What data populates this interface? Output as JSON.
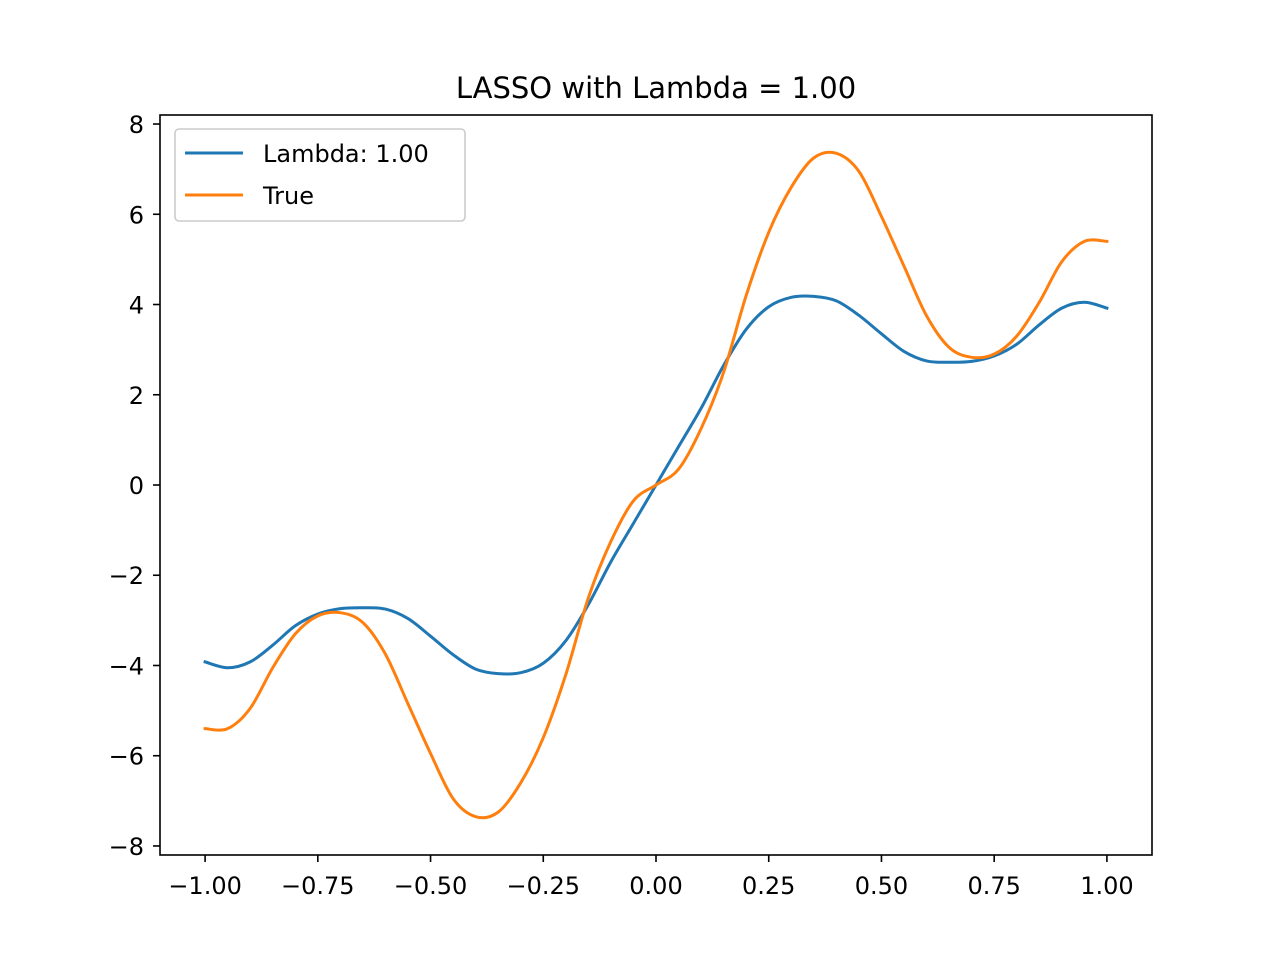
{
  "chart_data": {
    "type": "line",
    "title": "LASSO with Lambda = 1.00",
    "xlabel": "",
    "ylabel": "",
    "xlim": [
      -1.1,
      1.1
    ],
    "ylim": [
      -8.2,
      8.2
    ],
    "xticks": [
      -1.0,
      -0.75,
      -0.5,
      -0.25,
      0.0,
      0.25,
      0.5,
      0.75,
      1.0
    ],
    "xtick_labels": [
      "−1.00",
      "−0.75",
      "−0.50",
      "−0.25",
      "0.00",
      "0.25",
      "0.50",
      "0.75",
      "1.00"
    ],
    "yticks": [
      -8,
      -6,
      -4,
      -2,
      0,
      2,
      4,
      6,
      8
    ],
    "ytick_labels": [
      "−8",
      "−6",
      "−4",
      "−2",
      "0",
      "2",
      "4",
      "6",
      "8"
    ],
    "grid": false,
    "legend_position": "top-left",
    "x": [
      -1.0,
      -0.95,
      -0.9,
      -0.85,
      -0.8,
      -0.75,
      -0.7,
      -0.65,
      -0.6,
      -0.55,
      -0.5,
      -0.45,
      -0.4,
      -0.35,
      -0.3,
      -0.25,
      -0.2,
      -0.15,
      -0.1,
      -0.05,
      0.0,
      0.05,
      0.1,
      0.15,
      0.2,
      0.25,
      0.3,
      0.35,
      0.4,
      0.45,
      0.5,
      0.55,
      0.6,
      0.65,
      0.7,
      0.75,
      0.8,
      0.85,
      0.9,
      0.95,
      1.0
    ],
    "series": [
      {
        "name": "Lambda: 1.00",
        "color": "#1f77b4",
        "values": [
          -3.92,
          -4.05,
          -3.92,
          -3.55,
          -3.12,
          -2.86,
          -2.74,
          -2.72,
          -2.75,
          -2.96,
          -3.35,
          -3.76,
          -4.08,
          -4.18,
          -4.16,
          -3.95,
          -3.45,
          -2.65,
          -1.7,
          -0.85,
          0.0,
          0.85,
          1.7,
          2.65,
          3.45,
          3.95,
          4.16,
          4.18,
          4.08,
          3.76,
          3.35,
          2.96,
          2.75,
          2.72,
          2.74,
          2.86,
          3.12,
          3.55,
          3.92,
          4.05,
          3.92
        ]
      },
      {
        "name": "True",
        "color": "#ff7f0e",
        "values": [
          -5.4,
          -5.4,
          -4.95,
          -4.05,
          -3.3,
          -2.9,
          -2.83,
          -3.05,
          -3.75,
          -4.85,
          -5.95,
          -6.95,
          -7.35,
          -7.25,
          -6.6,
          -5.6,
          -4.2,
          -2.5,
          -1.25,
          -0.35,
          0.0,
          0.35,
          1.25,
          2.5,
          4.2,
          5.6,
          6.6,
          7.25,
          7.35,
          6.95,
          5.95,
          4.85,
          3.75,
          3.05,
          2.83,
          2.9,
          3.3,
          4.05,
          4.95,
          5.4,
          5.4
        ]
      }
    ]
  }
}
